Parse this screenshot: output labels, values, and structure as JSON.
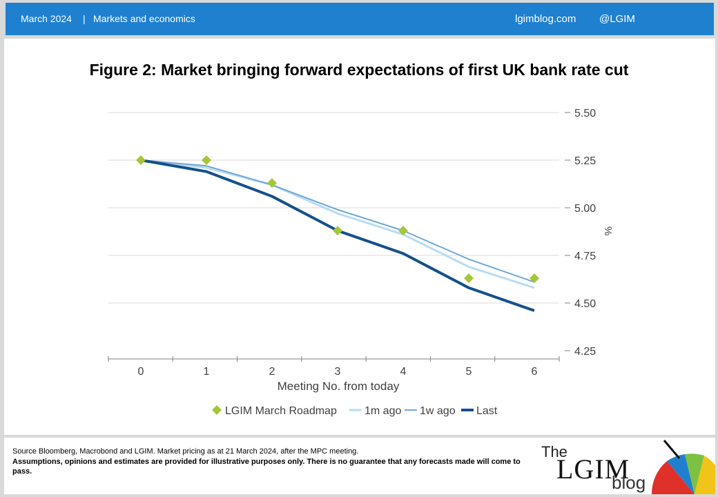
{
  "header": {
    "date": "March 2024",
    "separator": "|",
    "category": "Markets and economics",
    "site": "lgimblog.com",
    "handle": "@LGIM"
  },
  "figure": {
    "title": "Figure 2: Market bringing forward expectations of first UK bank rate cut"
  },
  "chart_data": {
    "type": "line",
    "xlabel": "Meeting No. from today",
    "ylabel": "%",
    "x": [
      0,
      1,
      2,
      3,
      4,
      5,
      6
    ],
    "x_tick_labels": [
      "0",
      "1",
      "2",
      "3",
      "4",
      "5",
      "6"
    ],
    "y_tick_labels": [
      "5.50",
      "5.25",
      "5.00",
      "4.75",
      "4.50",
      "4.25"
    ],
    "y_ticks": [
      5.5,
      5.25,
      5.0,
      4.75,
      4.5,
      4.25
    ],
    "ylim": [
      4.25,
      5.5
    ],
    "y_axis_side": "right",
    "grid": "horizontal",
    "legend_position": "bottom",
    "series": [
      {
        "name": "LGIM March Roadmap",
        "style": "marker",
        "color": "#a4c639",
        "values": [
          5.25,
          5.25,
          5.13,
          4.88,
          4.88,
          4.63,
          4.63
        ]
      },
      {
        "name": "1m ago",
        "style": "line",
        "color": "#b8dcf2",
        "values": [
          5.25,
          5.21,
          5.12,
          4.97,
          4.86,
          4.69,
          4.58
        ]
      },
      {
        "name": "1w ago",
        "style": "line",
        "color": "#6fa6d8",
        "values": [
          5.25,
          5.22,
          5.12,
          4.99,
          4.88,
          4.73,
          4.61
        ]
      },
      {
        "name": "Last",
        "style": "line",
        "color": "#14508a",
        "values": [
          5.25,
          5.19,
          5.06,
          4.88,
          4.76,
          4.58,
          4.46
        ]
      }
    ]
  },
  "footer": {
    "source": "Source Bloomberg, Macrobond and LGIM.  Market pricing as at 21 March 2024, after the MPC meeting.",
    "disclaimer": "Assumptions, opinions and estimates are provided for illustrative purposes only. There is no guarantee that any forecasts made will come to pass.",
    "logo": {
      "the": "The",
      "main": "LGIM",
      "blog": "blog"
    }
  }
}
